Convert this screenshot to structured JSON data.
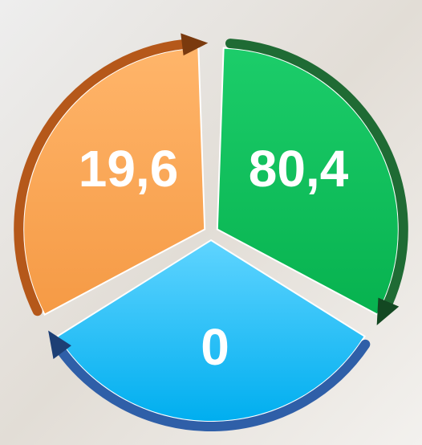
{
  "segments": [
    {
      "label": "19,6"
    },
    {
      "label": "80,4"
    },
    {
      "label": "0"
    }
  ]
}
